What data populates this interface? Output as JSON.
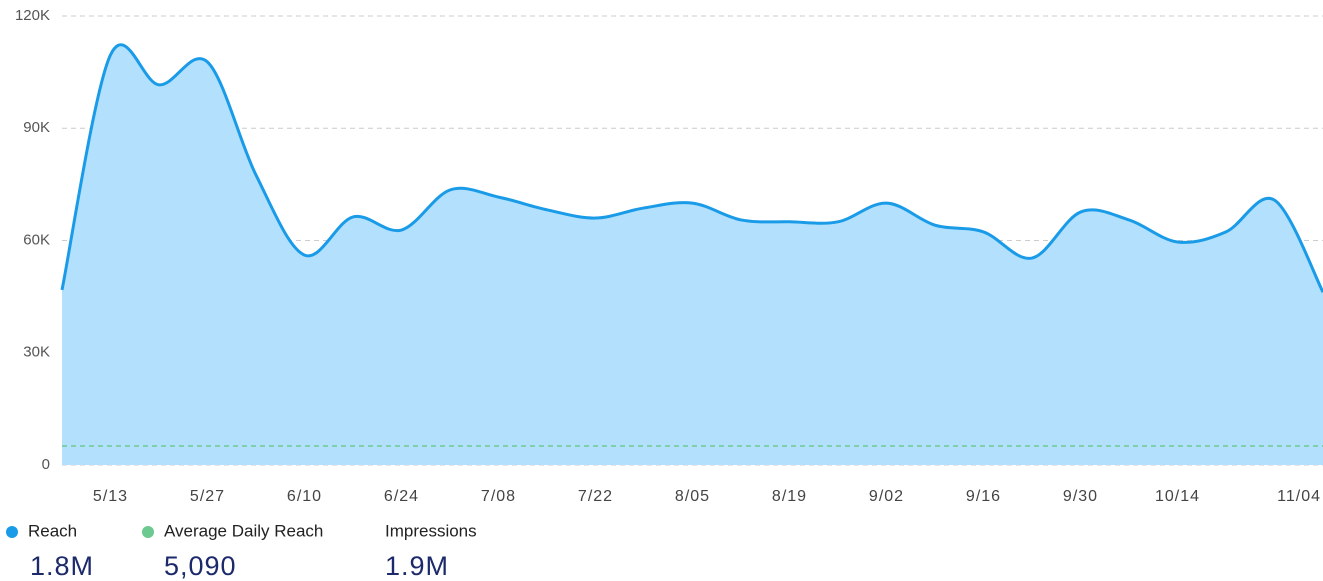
{
  "chart_data": {
    "type": "area",
    "categories": [
      null,
      "5/13",
      null,
      "5/27",
      null,
      "6/10",
      null,
      "6/24",
      null,
      "7/08",
      null,
      "7/22",
      null,
      "8/05",
      null,
      "8/19",
      null,
      "9/02",
      null,
      "9/16",
      null,
      "9/30",
      null,
      "10/14",
      null,
      null,
      "11/04"
    ],
    "series": [
      {
        "name": "Reach",
        "color": "#1a9be8",
        "fill": "#b3e0fd",
        "values": [
          46800,
          109600,
          101600,
          107700,
          77500,
          56100,
          66300,
          62800,
          73500,
          71600,
          68200,
          66000,
          68700,
          70000,
          65500,
          65000,
          65000,
          70000,
          64100,
          62300,
          55300,
          67600,
          65500,
          59600,
          62300,
          70800,
          46200
        ],
        "total": 1800000,
        "total_label": "1.8M"
      }
    ],
    "reference": {
      "name": "Average Daily Reach",
      "color": "#6cc98f",
      "value": 5090,
      "value_label": "5,090"
    },
    "impressions": {
      "name": "Impressions",
      "value": 1900000,
      "value_label": "1.9M"
    },
    "ylim": [
      0,
      120000
    ],
    "yticks": [
      0,
      {
        "value": 30000,
        "label": "30K"
      },
      {
        "value": 60000,
        "label": "60K"
      },
      {
        "value": 90000,
        "label": "90K"
      },
      {
        "value": 120000,
        "label": "120K"
      }
    ],
    "grid": true
  }
}
